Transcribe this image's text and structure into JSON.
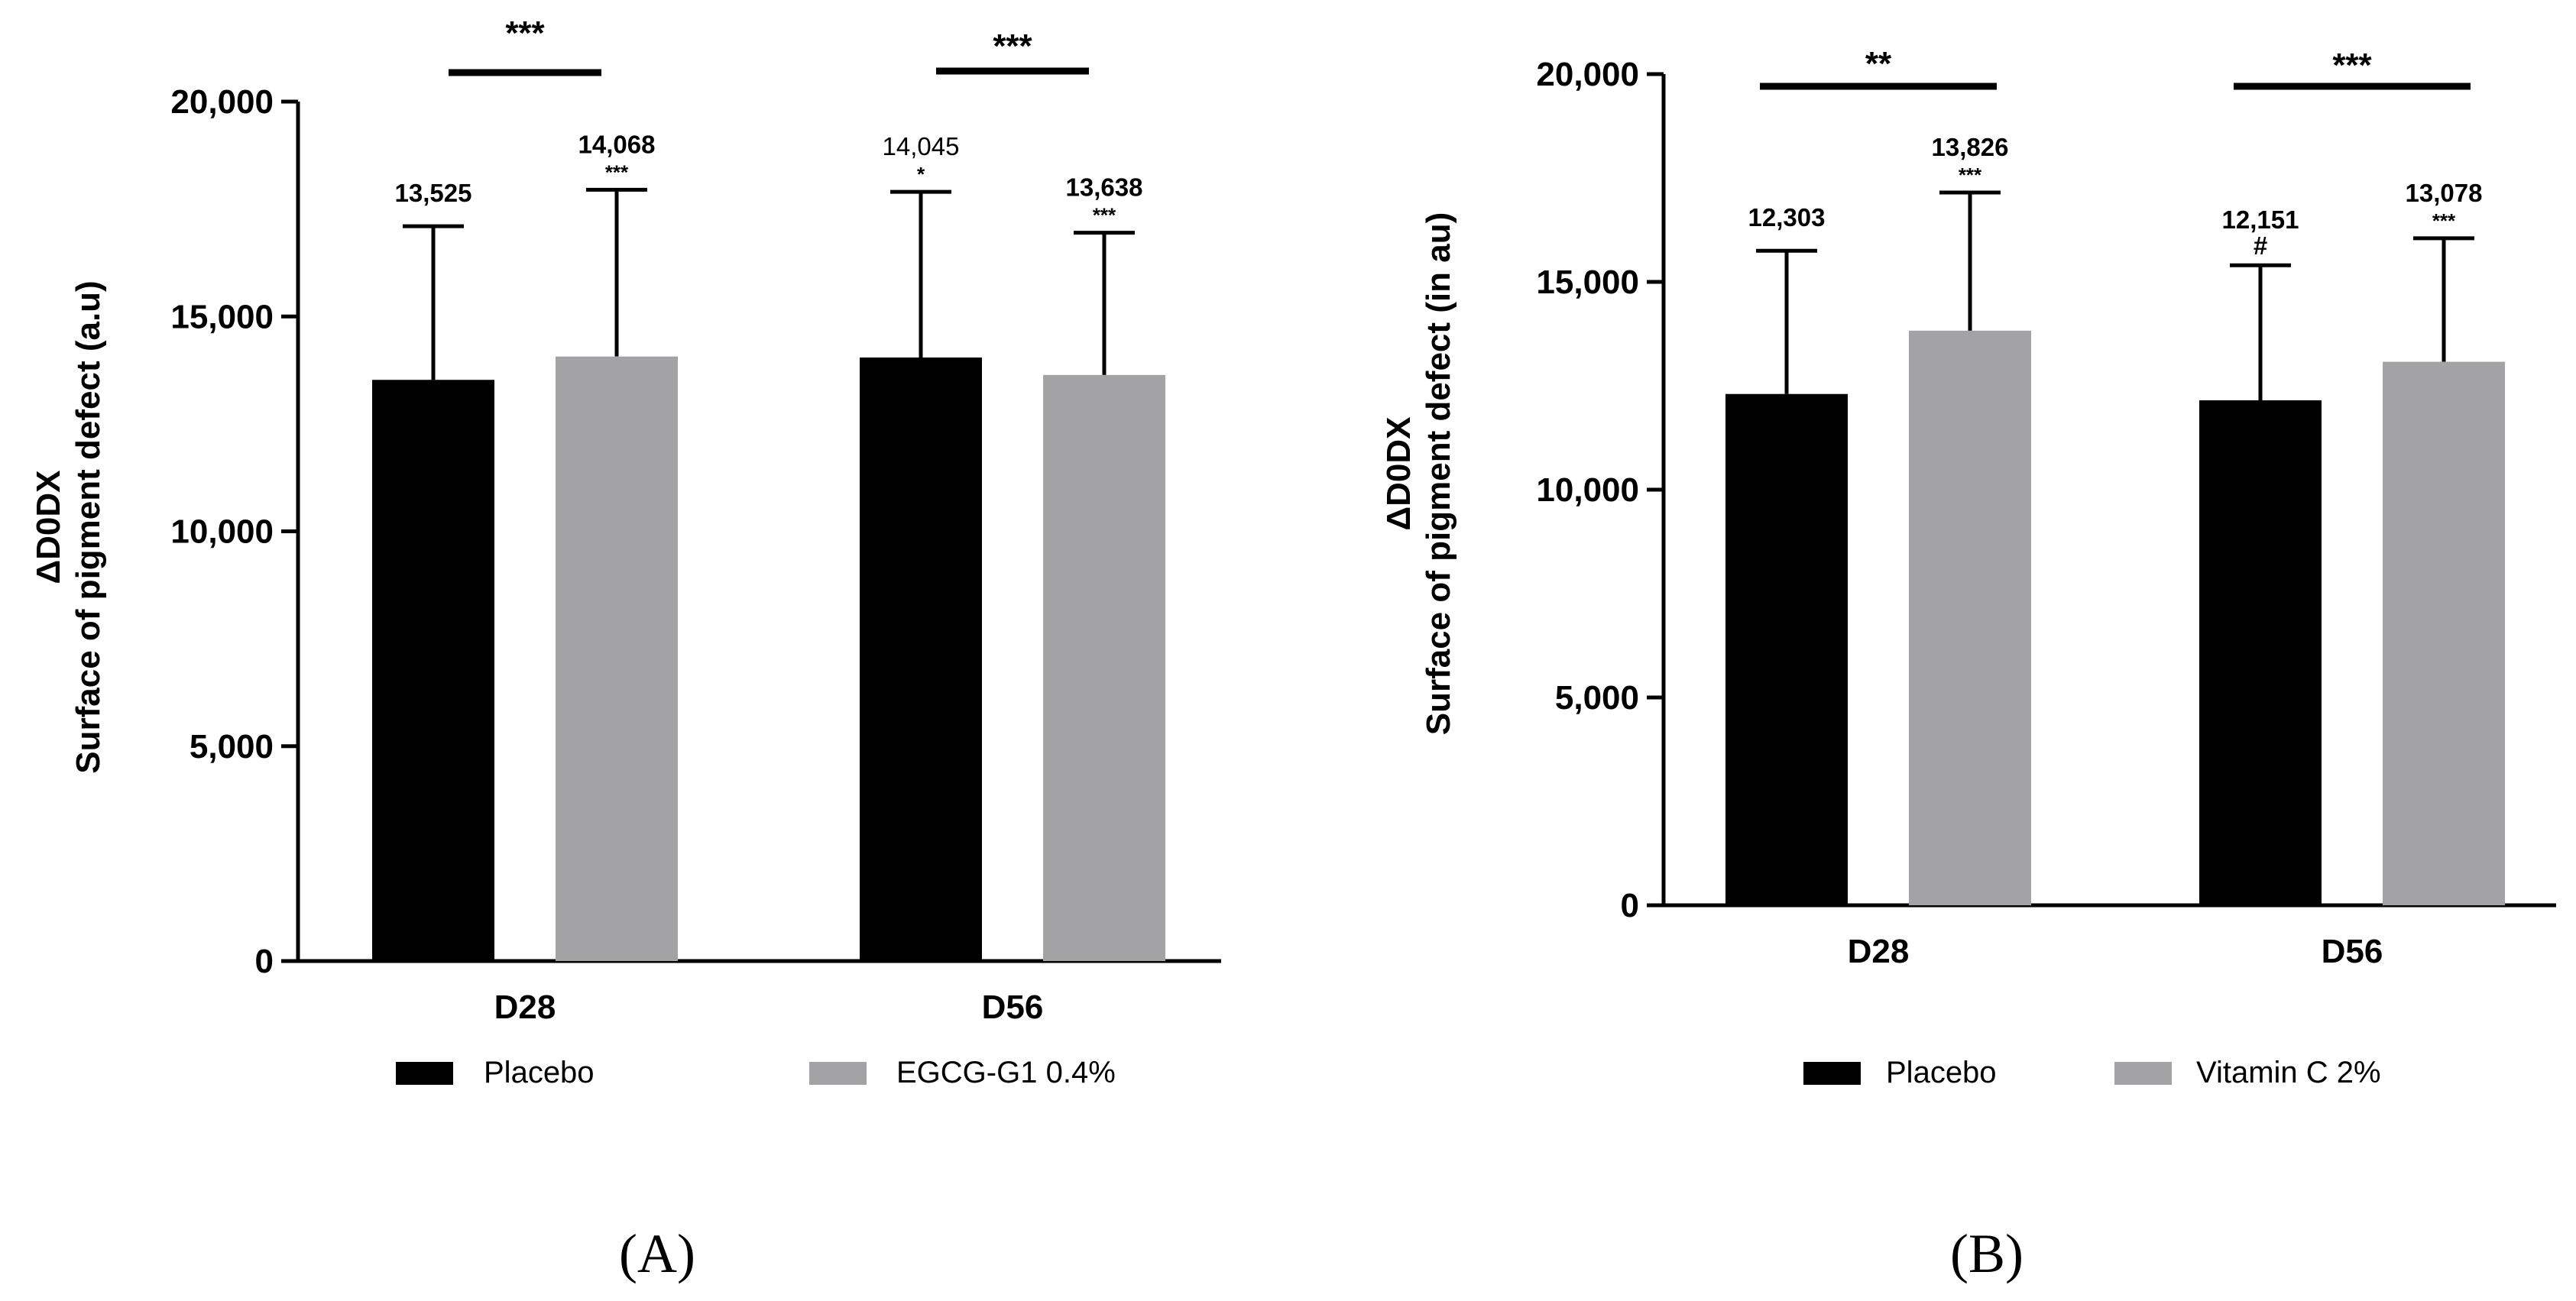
{
  "chart_data": [
    {
      "type": "bar",
      "panel_label": "(A)",
      "ylabel": [
        "ΔD0DX",
        "Surface of pigment defect (a.u)"
      ],
      "ylim": [
        0,
        20000
      ],
      "yticks": [
        0,
        5000,
        10000,
        15000,
        20000
      ],
      "ytick_labels": [
        "0",
        "5,000",
        "10,000",
        "15,000",
        "20,000"
      ],
      "categories": [
        "D28",
        "D56"
      ],
      "series": [
        {
          "name": "Placebo",
          "color": "#000000",
          "values": [
            13525,
            14045
          ],
          "error_top": [
            17100,
            17900
          ],
          "labels": [
            "13,525",
            "14,045"
          ],
          "label_bold": [
            true,
            false
          ],
          "marks": [
            "",
            "*"
          ]
        },
        {
          "name": "EGCG-G1 0.4%",
          "color": "#a3a3a6",
          "values": [
            14068,
            13638
          ],
          "error_top": [
            17950,
            16950
          ],
          "labels": [
            "14,068",
            "13,638"
          ],
          "label_bold": [
            true,
            true
          ],
          "marks": [
            "***",
            "***"
          ]
        }
      ],
      "comparisons": [
        "***",
        "***"
      ],
      "legend": [
        "Placebo",
        "EGCG-G1 0.4%"
      ]
    },
    {
      "type": "bar",
      "panel_label": "(B)",
      "ylabel": [
        "ΔD0DX",
        "Surface of pigment defect (in au)"
      ],
      "ylim": [
        0,
        20000
      ],
      "yticks": [
        0,
        5000,
        10000,
        15000,
        20000
      ],
      "ytick_labels": [
        "0",
        "5,000",
        "10,000",
        "15,000",
        "20,000"
      ],
      "categories": [
        "D28",
        "D56"
      ],
      "series": [
        {
          "name": "Placebo",
          "color": "#000000",
          "values": [
            12303,
            12151
          ],
          "error_top": [
            15750,
            15400
          ],
          "labels": [
            "12,303",
            "12,151"
          ],
          "label_bold": [
            true,
            true
          ],
          "marks": [
            "",
            "#"
          ]
        },
        {
          "name": "Vitamin C 2%",
          "color": "#a3a3a6",
          "values": [
            13826,
            13078
          ],
          "error_top": [
            17150,
            16050
          ],
          "labels": [
            "13,826",
            "13,078"
          ],
          "label_bold": [
            true,
            true
          ],
          "marks": [
            "***",
            "***"
          ]
        }
      ],
      "comparisons": [
        "**",
        "***"
      ],
      "legend": [
        "Placebo",
        "Vitamin C 2%"
      ]
    }
  ]
}
